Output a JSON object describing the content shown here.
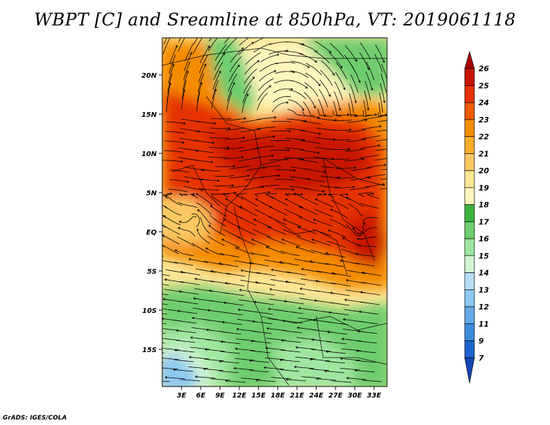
{
  "title": "WBPT [C] and Sreamline at 850hPa, VT: 2019061118",
  "credit": "GrADS: IGES/COLA",
  "map": {
    "lat_labels": [
      "20N",
      "15N",
      "10N",
      "5N",
      "EQ",
      "5S",
      "10S",
      "15S"
    ],
    "lon_labels": [
      "3E",
      "6E",
      "9E",
      "12E",
      "15E",
      "18E",
      "21E",
      "24E",
      "27E",
      "30E",
      "33E"
    ]
  },
  "colorbar": {
    "labels": [
      "26",
      "25",
      "24",
      "23",
      "22",
      "21",
      "20",
      "19",
      "18",
      "17",
      "16",
      "15",
      "14",
      "13",
      "12",
      "11",
      "9",
      "7"
    ],
    "colors": [
      "#a50000",
      "#c81400",
      "#e63200",
      "#f05a00",
      "#f58c00",
      "#f8aa28",
      "#fbc864",
      "#fde696",
      "#fff5be",
      "#3cb43c",
      "#6ecd6e",
      "#a0e6a0",
      "#d2f5d2",
      "#b4dcf5",
      "#8cc8f0",
      "#64aae6",
      "#3c8cdc",
      "#1e64cc",
      "#1446b4"
    ]
  },
  "shading": [
    {
      "name": "band-18-north",
      "color": "#fff5be"
    },
    {
      "name": "band-20",
      "color": "#fbc864"
    },
    {
      "name": "band-22",
      "color": "#f58c00"
    },
    {
      "name": "band-24",
      "color": "#e63200"
    },
    {
      "name": "band-25",
      "color": "#c81400"
    },
    {
      "name": "band-17-south",
      "color": "#6ecd6e"
    },
    {
      "name": "band-15-south",
      "color": "#d2f5d2"
    },
    {
      "name": "band-13-south",
      "color": "#8cc8f0"
    }
  ]
}
